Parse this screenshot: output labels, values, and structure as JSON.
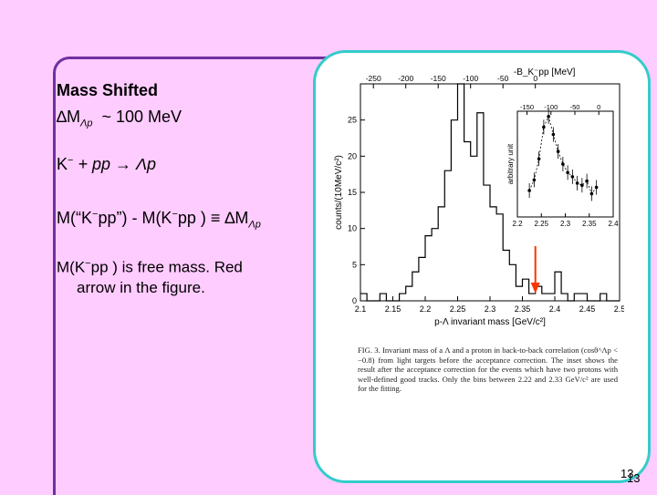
{
  "text": {
    "mass_shifted": "Mass Shifted",
    "delta_m_prefix": "∆M",
    "delta_m_sub": "Λp",
    "delta_m_value": "~ 100 MeV",
    "reaction_k": "K",
    "reaction_k_sup": "−",
    "reaction_rest": "+ pp → Λp",
    "m_eq_a": "M(“K",
    "m_eq_a_sup": "−",
    "m_eq_b": "pp”) - M(K",
    "m_eq_b_sup": "−",
    "m_eq_c": "pp ) ≡ ∆M",
    "m_eq_sub": "Λp",
    "free_a": "M(K",
    "free_a_sup": "−",
    "free_b": "pp ) is free mass. Red",
    "free_c": "arrow in the figure.",
    "caption": "FIG. 3. Invariant mass of a Λ and a proton in back-to-back correlation (cosθ^Λp < −0.8) from light targets before the acceptance correction. The inset shows the result after the acceptance correction for the events which have two protons with well-defined good tracks. Only the bins between 2.22 and 2.33 GeV/c² are used for the fitting.",
    "page_number": "13",
    "page_number_shadow": "13"
  },
  "chart_data": {
    "type": "bar",
    "xlabel": "p-Λ invariant mass [GeV/c²]",
    "ylabel": "counts/(10MeV/c²)",
    "top_axis_label": "-B_K⁻pp [MeV]",
    "xlim": [
      2.1,
      2.5
    ],
    "ylim": [
      0,
      30
    ],
    "x_ticks": [
      "2.1",
      "2.15",
      "2.2",
      "2.25",
      "2.3",
      "2.35",
      "2.4",
      "2.45",
      "2.5"
    ],
    "y_ticks": [
      "0",
      "5",
      "10",
      "15",
      "20",
      "25"
    ],
    "top_ticks": [
      "-250",
      "-200",
      "-150",
      "-100",
      "-50",
      "0"
    ],
    "bin_edges": [
      2.1,
      2.11,
      2.12,
      2.13,
      2.14,
      2.15,
      2.16,
      2.17,
      2.18,
      2.19,
      2.2,
      2.21,
      2.22,
      2.23,
      2.24,
      2.25,
      2.26,
      2.27,
      2.28,
      2.29,
      2.3,
      2.31,
      2.32,
      2.33,
      2.34,
      2.35,
      2.36,
      2.37,
      2.38,
      2.39,
      2.4,
      2.41,
      2.42,
      2.43,
      2.44,
      2.45,
      2.46,
      2.47,
      2.48,
      2.49,
      2.5
    ],
    "counts": [
      1,
      0,
      0,
      1,
      0,
      0,
      1,
      2,
      4,
      6,
      9,
      10,
      13,
      18,
      25,
      30,
      22,
      20,
      26,
      16,
      13,
      12,
      7,
      5,
      2,
      3,
      1,
      2,
      1,
      1,
      4,
      1,
      0,
      1,
      1,
      0,
      0,
      1,
      0,
      0
    ],
    "arrow_x": 2.37,
    "arrow_color": "#ff3300",
    "inset": {
      "ylabel": "arbitrary unit",
      "x_ticks": [
        "2.2",
        "2.25",
        "2.3",
        "2.35",
        "2.4"
      ],
      "top_ticks": [
        "-150",
        "-100",
        "-50",
        "0"
      ],
      "xlim": [
        2.2,
        2.4
      ],
      "points_x": [
        2.225,
        2.235,
        2.245,
        2.255,
        2.265,
        2.275,
        2.285,
        2.295,
        2.305,
        2.315,
        2.325,
        2.335,
        2.345,
        2.355,
        2.365
      ],
      "points_y": [
        0.25,
        0.35,
        0.55,
        0.85,
        0.95,
        0.78,
        0.62,
        0.5,
        0.42,
        0.38,
        0.32,
        0.3,
        0.34,
        0.22,
        0.28
      ]
    }
  }
}
